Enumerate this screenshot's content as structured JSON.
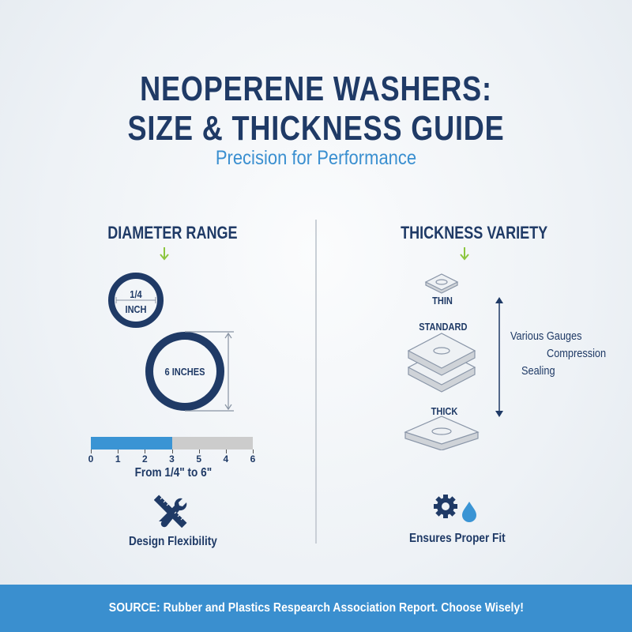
{
  "header": {
    "title_line1": "NEOPERENE WASHERS:",
    "title_line2": "SIZE & THICKNESS GUIDE",
    "subtitle": "Precision for Performance"
  },
  "colors": {
    "navy": "#1f3a66",
    "accent_blue": "#3a8fd0",
    "arrow_green": "#8cc63f",
    "bar_empty": "#cccccc"
  },
  "diameter": {
    "heading": "DIAMETER RANGE",
    "small_label_1": "1/4",
    "small_label_2": "INCH",
    "large_label": "6 INCHES",
    "scale_ticks": [
      "0",
      "1",
      "2",
      "3",
      "5",
      "4",
      "6"
    ],
    "scale_fill_percent": 50,
    "caption": "From 1/4\" to 6\"",
    "icon": "ruler-wrench-icon",
    "feature": "Design Flexibility"
  },
  "thickness": {
    "heading": "THICKNESS VARIETY",
    "thin": "THIN",
    "standard": "STANDARD",
    "thick": "THICK",
    "notes": [
      "Various Gauges",
      "Compression",
      "Sealing"
    ],
    "icon": "gear-droplet-icon",
    "feature": "Ensures Proper Fit"
  },
  "footer": {
    "text": "SOURCE: Rubber and Plastics Respearch Association Report. Choose Wisely!"
  }
}
